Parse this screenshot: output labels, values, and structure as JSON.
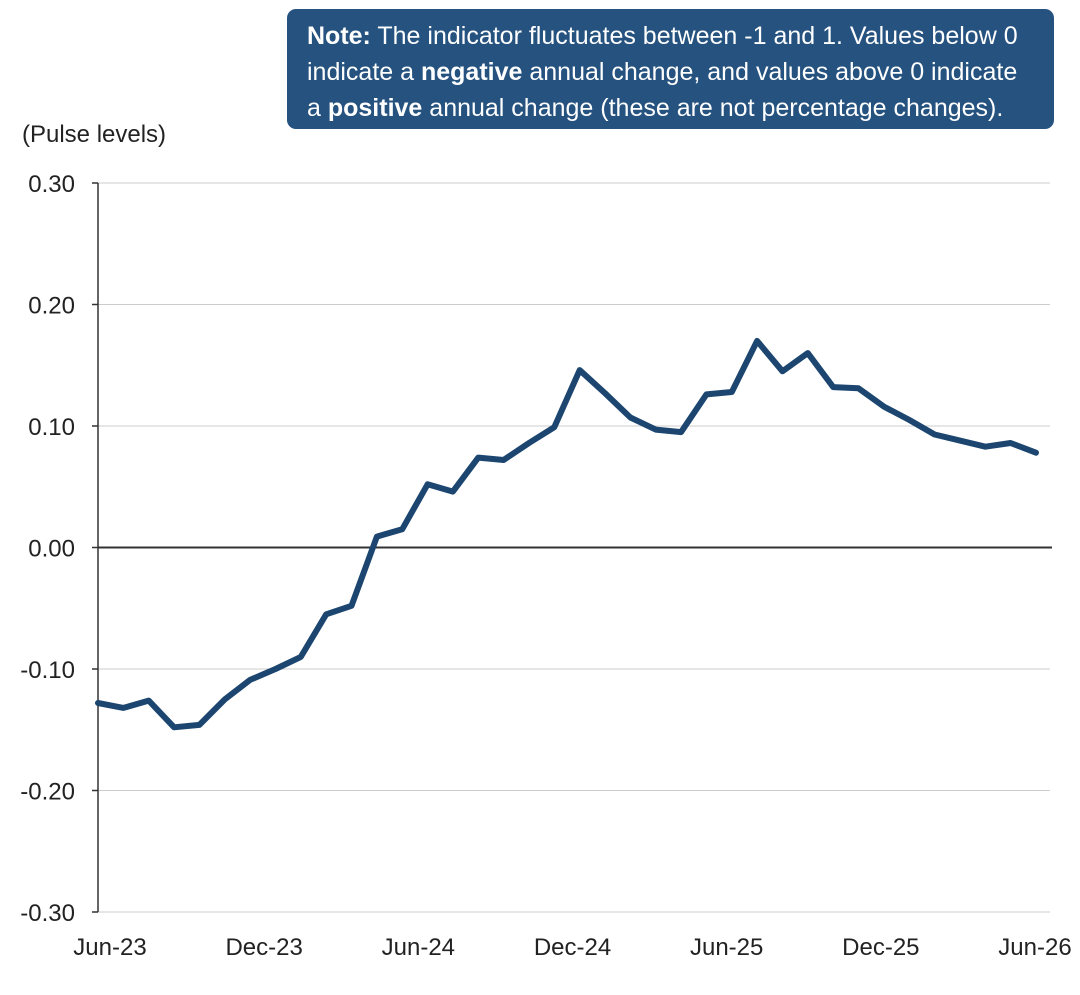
{
  "note": {
    "label": "Note:",
    "text_1": " The indicator fluctuates between -1 and 1. Values below 0 indicate a ",
    "negative": "negative",
    "text_2": " annual change, and values above 0 indicate a ",
    "positive": "positive",
    "text_3": " annual change (these are not percentage changes)."
  },
  "colors": {
    "line": "#1c4670",
    "note_background": "#25527f",
    "note_text": "#ffffff",
    "gridline": "#cccccc",
    "zero_line": "#333333",
    "text": "#222222"
  },
  "chart_data": {
    "type": "line",
    "title": "",
    "ylabel": "(Pulse levels)",
    "xlabel": "",
    "ylim": [
      -0.3,
      0.3
    ],
    "y_ticks": [
      0.3,
      0.2,
      0.1,
      0.0,
      -0.1,
      -0.2,
      -0.3
    ],
    "y_tick_labels": [
      "0.30",
      "0.20",
      "0.10",
      "0.00",
      "-0.10",
      "-0.20",
      "-0.30"
    ],
    "x_tick_labels": [
      "Jun-23",
      "Dec-23",
      "Jun-24",
      "Dec-24",
      "Jun-25",
      "Dec-25",
      "Jun-26"
    ],
    "grid": true,
    "series": [
      {
        "values": [
          -0.128,
          -0.132,
          -0.126,
          -0.148,
          -0.146,
          -0.125,
          -0.109,
          -0.1,
          -0.09,
          -0.055,
          -0.048,
          0.009,
          0.015,
          0.052,
          0.046,
          0.074,
          0.072,
          0.086,
          0.099,
          0.146,
          0.127,
          0.107,
          0.097,
          0.095,
          0.126,
          0.128,
          0.17,
          0.145,
          0.16,
          0.132,
          0.131,
          0.116,
          0.105,
          0.093,
          0.088,
          0.083,
          0.086,
          0.078
        ]
      }
    ]
  }
}
